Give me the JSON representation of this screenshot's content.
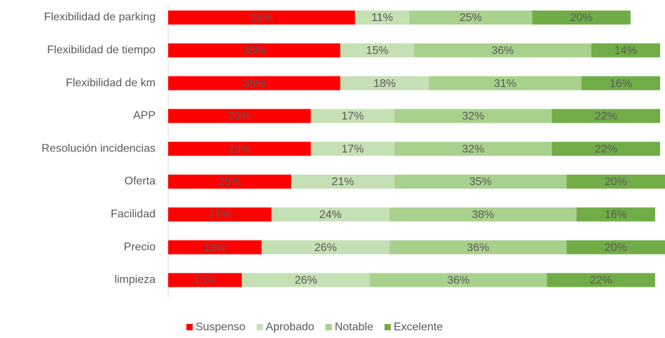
{
  "chart_data": {
    "type": "stacked_bar_horizontal",
    "categories": [
      "Flexibilidad de parking",
      "Flexibilidad de tiempo",
      "Flexibilidad de km",
      "APP",
      "Resolución incidencias",
      "Oferta",
      "Facilidad",
      "Precio",
      "limpieza"
    ],
    "series": [
      {
        "name": "Suspenso",
        "color": "#ff0000",
        "values": [
          38,
          35,
          35,
          29,
          29,
          25,
          21,
          19,
          15
        ],
        "value_labels": [
          "38%",
          "35%",
          "35%",
          "29%",
          "29%",
          "25%",
          "21%",
          "19%",
          "15%"
        ]
      },
      {
        "name": "Aprobado",
        "color": "#c5e0b4",
        "values": [
          11,
          15,
          18,
          17,
          17,
          21,
          24,
          26,
          26
        ],
        "value_labels": [
          "11%",
          "15%",
          "18%",
          "17%",
          "17%",
          "21%",
          "24%",
          "26%",
          "26%"
        ]
      },
      {
        "name": "Notable",
        "color": "#a9d18e",
        "values": [
          25,
          36,
          31,
          32,
          32,
          35,
          38,
          36,
          36
        ],
        "value_labels": [
          "25%",
          "36%",
          "31%",
          "32%",
          "32%",
          "35%",
          "38%",
          "36%",
          "36%"
        ]
      },
      {
        "name": "Excelente",
        "color": "#70ad47",
        "values": [
          20,
          14,
          16,
          22,
          22,
          20,
          16,
          20,
          22
        ],
        "value_labels": [
          "20%",
          "14%",
          "16%",
          "22%",
          "22%",
          "20%",
          "16%",
          "20%",
          "22%"
        ]
      }
    ],
    "xlim": [
      0,
      101
    ]
  }
}
